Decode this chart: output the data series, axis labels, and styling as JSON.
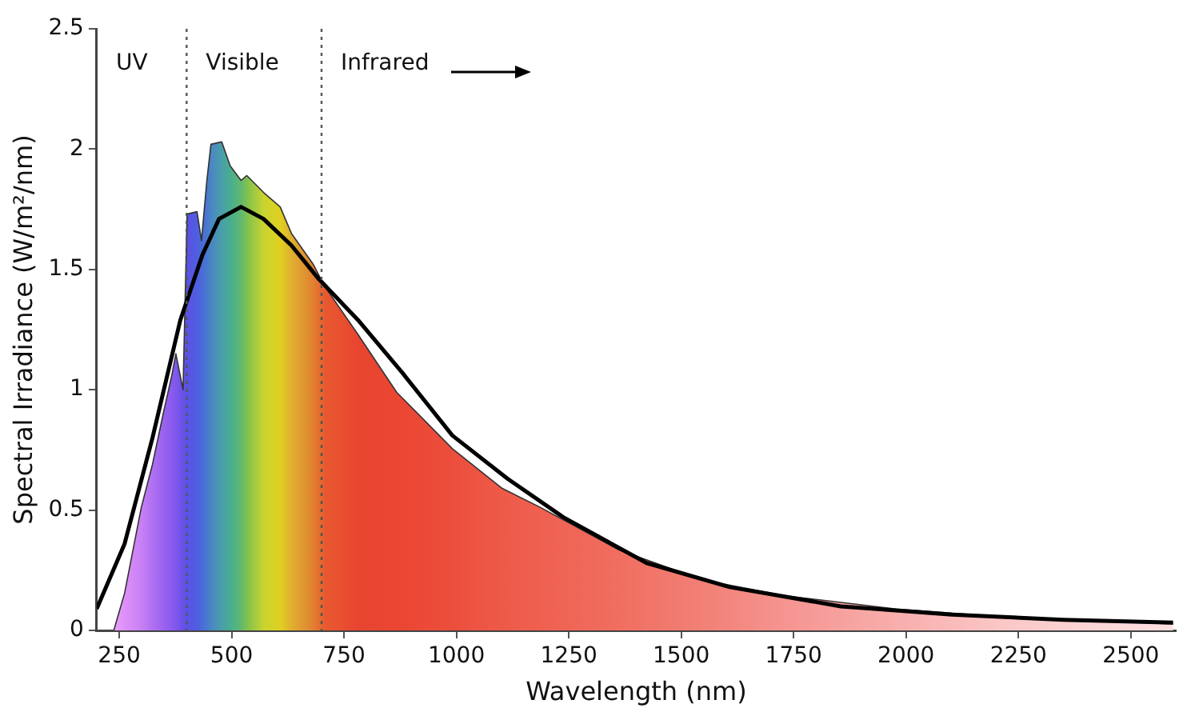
{
  "chart_data": {
    "type": "area",
    "xlabel": "Wavelength (nm)",
    "ylabel": "Spectral Irradiance (W/m²/nm)",
    "xlim": [
      200,
      2600
    ],
    "xticks": [
      250,
      500,
      750,
      1000,
      1250,
      1500,
      1750,
      2000,
      2250,
      2500
    ],
    "ylim": [
      0,
      2.5
    ],
    "yticks": [
      0,
      0.5,
      1,
      1.5,
      2,
      2.5
    ],
    "grid": false,
    "legend": false,
    "series": [
      {
        "color": "#e84530",
        "x": [
          238,
          262,
          299,
          324,
          349,
          367,
          376,
          392,
          401,
          423,
          433,
          445,
          454,
          478,
          497,
          521,
          534,
          571,
          608,
          633,
          682,
          707,
          781,
          867,
          991,
          1102,
          1188,
          1361,
          1546,
          1731,
          1978,
          2225,
          2594
        ],
        "values": [
          0,
          0.155,
          0.51,
          0.69,
          0.91,
          1.06,
          1.15,
          1.0,
          1.73,
          1.74,
          1.62,
          1.87,
          2.02,
          2.03,
          1.93,
          1.87,
          1.89,
          1.82,
          1.76,
          1.65,
          1.52,
          1.43,
          1.23,
          0.99,
          0.755,
          0.59,
          0.51,
          0.335,
          0.21,
          0.144,
          0.089,
          0.055,
          0.027
        ],
        "colors": [
          "#e9a0f8",
          "#dd90f8",
          "#c880f5",
          "#b070f2",
          "#9a62ef",
          "#8a5aee",
          "#8058ec",
          "#6a50e8",
          "#5a52e4",
          "#4f5ee0",
          "#4a6ad8",
          "#4878d0",
          "#4a86c4",
          "#4a9eaa",
          "#48ae90",
          "#60b870",
          "#80c050",
          "#c8d430",
          "#e0d020",
          "#e0b030",
          "#e08030",
          "#e85a30",
          "#e84530",
          "#ea4632",
          "#ec4e3c",
          "#ee5a48",
          "#ef6050",
          "#f06e60",
          "#f28076",
          "#f59490",
          "#f8aeac",
          "#fbc8c8",
          "#fde0e0"
        ]
      },
      {
        "type": "line",
        "color": "#000000",
        "line_style": "solid",
        "x": [
          200,
          262,
          324,
          386,
          435,
          472,
          521,
          571,
          633,
          694,
          781,
          880,
          991,
          1114,
          1238,
          1423,
          1608,
          1855,
          2102,
          2349,
          2594
        ],
        "values": [
          0.09,
          0.36,
          0.8,
          1.29,
          1.56,
          1.71,
          1.76,
          1.71,
          1.6,
          1.46,
          1.29,
          1.07,
          0.81,
          0.63,
          0.47,
          0.28,
          0.18,
          0.1,
          0.066,
          0.044,
          0.032
        ]
      }
    ],
    "ref_lines": [
      {
        "axis": "x",
        "value": 400,
        "color": "#555555",
        "line_style": "dotted"
      },
      {
        "axis": "x",
        "value": 700,
        "color": "#555555",
        "line_style": "dotted"
      }
    ],
    "annotations": [
      "UV",
      "Visible",
      "Infrared"
    ]
  }
}
